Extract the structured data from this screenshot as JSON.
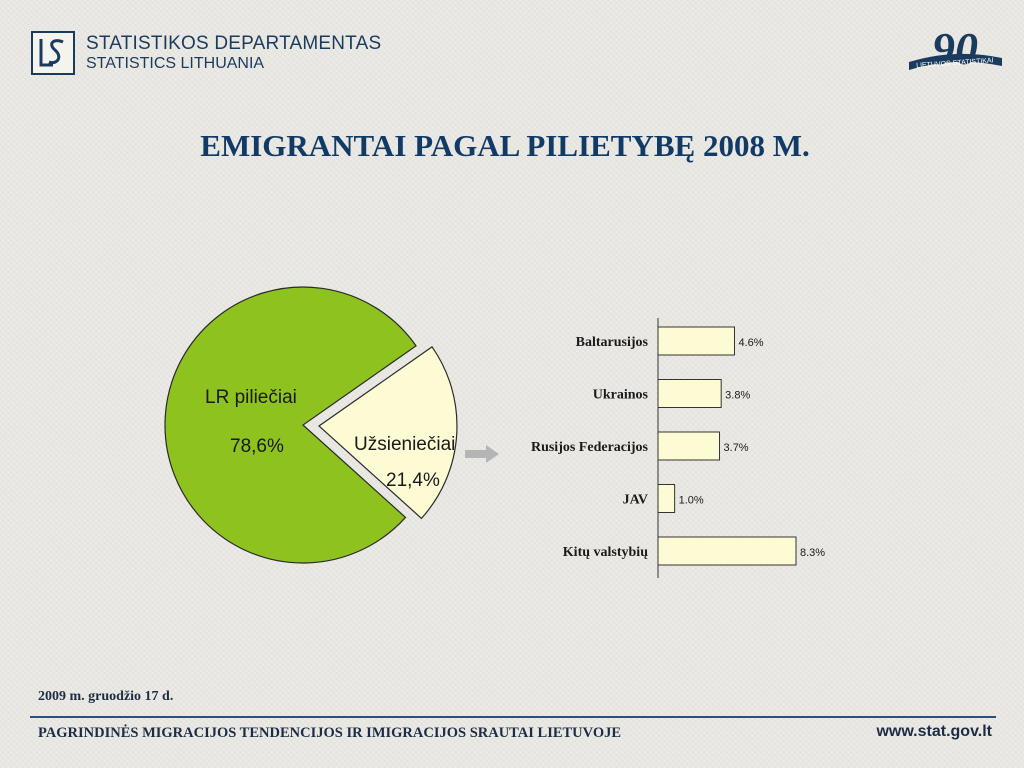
{
  "header": {
    "org_line1": "STATISTIKOS DEPARTAMENTAS",
    "org_line2": "STATISTICS LITHUANIA",
    "badge_number": "90",
    "badge_text": "LIETUVOS STATISTIKAI"
  },
  "title": "EMIGRANTAI PAGAL PILIETYBĘ 2008 M.",
  "chart_data": [
    {
      "type": "pie",
      "slices": [
        {
          "label": "LR piliečiai",
          "value_label": "78,6%",
          "value": 78.6,
          "color": "#8dc21f"
        },
        {
          "label": "Užsieniečiai",
          "value_label": "21,4%",
          "value": 21.4,
          "color": "#fdfbd4",
          "exploded": true
        }
      ]
    },
    {
      "type": "bar",
      "orientation": "horizontal",
      "categories": [
        "Baltarusijos",
        "Ukrainos",
        "Rusijos Federacijos",
        "JAV",
        "Kitų valstybių"
      ],
      "values": [
        4.6,
        3.8,
        3.7,
        1.0,
        8.3
      ],
      "value_labels": [
        "4.6%",
        "3.8%",
        "3.7%",
        "1.0%",
        "8.3%"
      ],
      "bar_color": "#fdfbd4"
    }
  ],
  "footer": {
    "date": "2009 m. gruodžio 17 d.",
    "text": "PAGRINDINĖS MIGRACIJOS TENDENCIJOS IR IMIGRACIJOS SRAUTAI LIETUVOJE",
    "url": "www.stat.gov.lt"
  }
}
